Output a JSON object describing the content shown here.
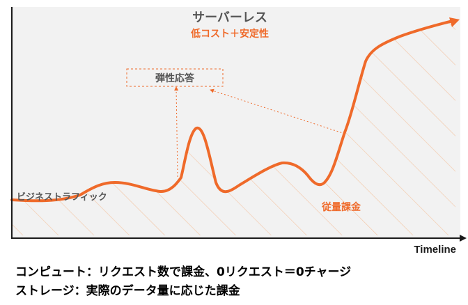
{
  "diagram": {
    "title": "サーバーレス",
    "subtitle": "低コスト＋安定性",
    "callout": "弾性応答",
    "traffic_label": "ビジネストラフィック",
    "billing_label": "従量課金",
    "axis_label": "Timeline"
  },
  "notes": {
    "compute": "コンピュート：リクエスト数で課金、0リクエスト＝0チャージ",
    "storage": "ストレージ：実際のデータ量に応じた課金"
  },
  "colors": {
    "accent": "#ef6a2a",
    "panel": "#f2f2f2",
    "hatch": "#f3c7a8",
    "title": "#555555",
    "label": "#555555",
    "axis": "#1a1a1a"
  }
}
